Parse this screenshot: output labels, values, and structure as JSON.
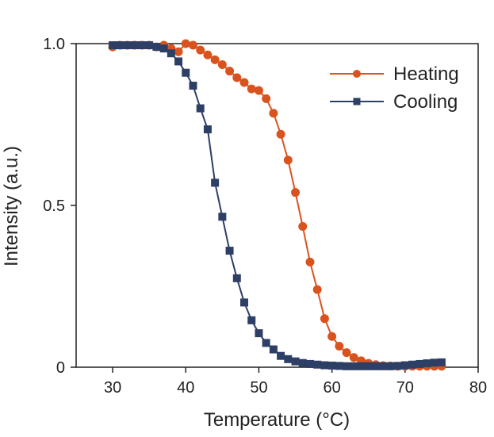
{
  "chart_data": {
    "type": "line",
    "title": "",
    "xlabel": "Temperature (°C)",
    "ylabel": "Intensity (a.u.)",
    "xlim": [
      25,
      80
    ],
    "ylim": [
      0,
      1.0
    ],
    "grid": false,
    "legend_position": "top-right",
    "x_ticks": [
      30,
      40,
      50,
      60,
      70,
      80
    ],
    "x_tick_labels": [
      "30",
      "40",
      "50",
      "60",
      "70",
      "80"
    ],
    "y_ticks": [
      0,
      0.5,
      1.0
    ],
    "y_tick_labels": [
      "0",
      "0.5",
      "1.0"
    ],
    "series": [
      {
        "name": "Heating",
        "color": "#d9531e",
        "marker": "circle",
        "x": [
          30,
          31,
          32,
          33,
          34,
          35,
          36,
          37,
          38,
          39,
          40,
          41,
          42,
          43,
          44,
          45,
          46,
          47,
          48,
          49,
          50,
          51,
          52,
          53,
          54,
          55,
          56,
          57,
          58,
          59,
          60,
          61,
          62,
          63,
          64,
          65,
          66,
          67,
          68,
          69,
          70,
          71,
          72,
          73,
          74,
          75
        ],
        "y": [
          0.99,
          0.995,
          0.995,
          0.995,
          0.995,
          0.995,
          0.99,
          0.995,
          0.985,
          0.975,
          1.0,
          0.995,
          0.98,
          0.965,
          0.95,
          0.935,
          0.915,
          0.895,
          0.88,
          0.86,
          0.855,
          0.83,
          0.785,
          0.72,
          0.64,
          0.54,
          0.435,
          0.325,
          0.24,
          0.15,
          0.095,
          0.065,
          0.045,
          0.03,
          0.02,
          0.012,
          0.008,
          0.005,
          0.004,
          0.003,
          0.003,
          0.003,
          0.003,
          0.003,
          0.003,
          0.003
        ]
      },
      {
        "name": "Cooling",
        "color": "#2e3f66",
        "marker": "square",
        "x": [
          30,
          31,
          32,
          33,
          34,
          35,
          36,
          37,
          38,
          39,
          40,
          41,
          42,
          43,
          44,
          45,
          46,
          47,
          48,
          49,
          50,
          51,
          52,
          53,
          54,
          55,
          56,
          57,
          58,
          59,
          60,
          61,
          62,
          63,
          64,
          65,
          66,
          67,
          68,
          69,
          70,
          71,
          72,
          73,
          74,
          75
        ],
        "y": [
          0.995,
          0.995,
          0.995,
          0.995,
          0.995,
          0.995,
          0.99,
          0.985,
          0.97,
          0.945,
          0.91,
          0.87,
          0.8,
          0.735,
          0.57,
          0.465,
          0.36,
          0.275,
          0.2,
          0.145,
          0.105,
          0.075,
          0.055,
          0.035,
          0.025,
          0.018,
          0.013,
          0.01,
          0.008,
          0.006,
          0.005,
          0.004,
          0.003,
          0.003,
          0.003,
          0.003,
          0.003,
          0.003,
          0.003,
          0.004,
          0.006,
          0.008,
          0.01,
          0.012,
          0.014,
          0.015
        ]
      }
    ]
  }
}
